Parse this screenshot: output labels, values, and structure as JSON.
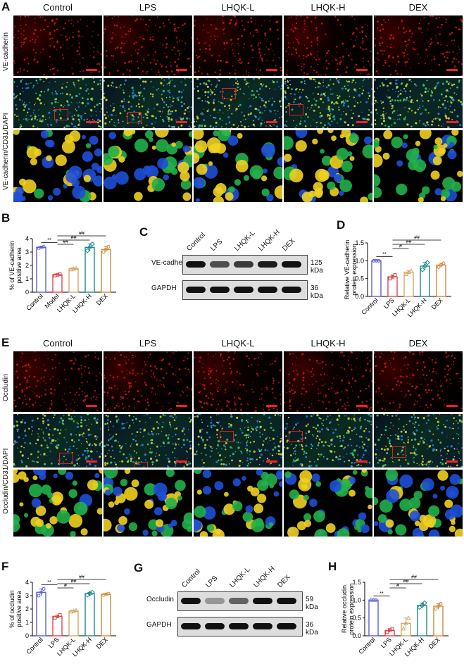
{
  "panels": {
    "A": "A",
    "B": "B",
    "C": "C",
    "D": "D",
    "E": "E",
    "F": "F",
    "G": "G",
    "H": "H"
  },
  "columns": [
    "Control",
    "LPS",
    "LHQK-L",
    "LHQK-H",
    "DEX"
  ],
  "rows_A": {
    "r1": "VE-cadherin",
    "r2": "VE-cadherin/CD31/DAPI"
  },
  "rows_E": {
    "r1": "Occludin",
    "r2": "Occludin/CD31/DAPI"
  },
  "blot_C": {
    "lanes": [
      "Control",
      "LPS",
      "LHQK-L",
      "LHQK-H",
      "DEX"
    ],
    "target": "VE-cadherin",
    "target_kda": "125 kDa",
    "loading": "GAPDH",
    "loading_kda": "36 kDa",
    "target_intensity": [
      1.0,
      0.7,
      0.8,
      0.95,
      1.0
    ]
  },
  "blot_G": {
    "lanes": [
      "Control",
      "LPS",
      "LHQK-L",
      "LHQK-H",
      "DEX"
    ],
    "target": "Occludin",
    "target_kda": "59 kDa",
    "loading": "GAPDH",
    "loading_kda": "36 kDa",
    "target_intensity": [
      1.0,
      0.35,
      0.6,
      1.0,
      1.0
    ]
  },
  "colors": {
    "control": "#5b5fd6",
    "lps": "#e0464a",
    "lhqk_l": "#d6a86a",
    "lhqk_h": "#1c8a8c",
    "dex": "#d08a38",
    "roi": "#e02020",
    "scalebar": "#ff2020"
  },
  "chart_data": [
    {
      "id": "B",
      "type": "bar",
      "categories": [
        "Control",
        "Model",
        "LHQK-L",
        "LHQK-H",
        "DEX"
      ],
      "values": [
        3.35,
        1.3,
        1.75,
        3.35,
        3.2
      ],
      "points": [
        [
          3.3,
          3.35,
          3.4
        ],
        [
          1.25,
          1.3,
          1.35
        ],
        [
          1.7,
          1.75,
          1.8
        ],
        [
          3.1,
          3.35,
          3.6
        ],
        [
          3.0,
          3.2,
          3.4
        ]
      ],
      "ylabel": "% of VE-cadherin positive area",
      "ylim": [
        0,
        4
      ],
      "yticks": [
        "0",
        "1",
        "2",
        "3",
        "4"
      ],
      "annotations": [
        {
          "a": 0,
          "b": 1,
          "text": "**"
        },
        {
          "a": 1,
          "b": 2,
          "text": "##"
        },
        {
          "a": 1,
          "b": 3,
          "text": "##"
        },
        {
          "a": 1,
          "b": 4,
          "text": "##"
        }
      ]
    },
    {
      "id": "D",
      "type": "bar",
      "categories": [
        "Control",
        "LPS",
        "LHQK-L",
        "LHQK-H",
        "DEX"
      ],
      "values": [
        1.0,
        0.55,
        0.68,
        0.85,
        0.88
      ],
      "points": [
        [
          1.0,
          1.0,
          1.0
        ],
        [
          0.5,
          0.55,
          0.6
        ],
        [
          0.62,
          0.68,
          0.72
        ],
        [
          0.75,
          0.85,
          0.95
        ],
        [
          0.82,
          0.88,
          0.93
        ]
      ],
      "ylabel": "Relative VE-cadherin protein expression",
      "ylim": [
        0,
        1.5
      ],
      "yticks": [
        "0.0",
        "0.5",
        "1.0",
        "1.5"
      ],
      "annotations": [
        {
          "a": 0,
          "b": 1,
          "text": "**"
        },
        {
          "a": 1,
          "b": 2,
          "text": "#"
        },
        {
          "a": 1,
          "b": 3,
          "text": "##"
        },
        {
          "a": 1,
          "b": 4,
          "text": "##"
        }
      ]
    },
    {
      "id": "F",
      "type": "bar",
      "categories": [
        "Control",
        "LPS",
        "LHQK-L",
        "LHQK-H",
        "DEX"
      ],
      "values": [
        3.25,
        1.45,
        1.85,
        3.15,
        3.1
      ],
      "points": [
        [
          3.0,
          3.25,
          3.5
        ],
        [
          1.35,
          1.45,
          1.55
        ],
        [
          1.8,
          1.85,
          1.9
        ],
        [
          3.05,
          3.15,
          3.25
        ],
        [
          3.05,
          3.1,
          3.15
        ]
      ],
      "ylabel": "% of occludin positive area",
      "ylim": [
        0,
        4
      ],
      "yticks": [
        "0",
        "1",
        "2",
        "3",
        "4"
      ],
      "annotations": [
        {
          "a": 0,
          "b": 1,
          "text": "**"
        },
        {
          "a": 1,
          "b": 2,
          "text": "#"
        },
        {
          "a": 1,
          "b": 3,
          "text": "##"
        },
        {
          "a": 1,
          "b": 4,
          "text": "##"
        }
      ]
    },
    {
      "id": "H",
      "type": "bar",
      "categories": [
        "Control",
        "LPS",
        "LHQK-L",
        "LHQK-H",
        "DEX"
      ],
      "values": [
        1.0,
        0.15,
        0.35,
        0.85,
        0.83
      ],
      "points": [
        [
          1.0,
          1.0,
          1.0
        ],
        [
          0.1,
          0.15,
          0.2
        ],
        [
          0.2,
          0.35,
          0.5
        ],
        [
          0.8,
          0.85,
          0.92
        ],
        [
          0.75,
          0.83,
          0.9
        ]
      ],
      "ylabel": "Relative occludin protein expression",
      "ylim": [
        0,
        1.5
      ],
      "yticks": [
        "0.0",
        "0.5",
        "1.0",
        "1.5"
      ],
      "annotations": [
        {
          "a": 0,
          "b": 1,
          "text": "**"
        },
        {
          "a": 1,
          "b": 2,
          "text": "#"
        },
        {
          "a": 1,
          "b": 3,
          "text": "##"
        },
        {
          "a": 1,
          "b": 4,
          "text": "##"
        }
      ]
    }
  ]
}
